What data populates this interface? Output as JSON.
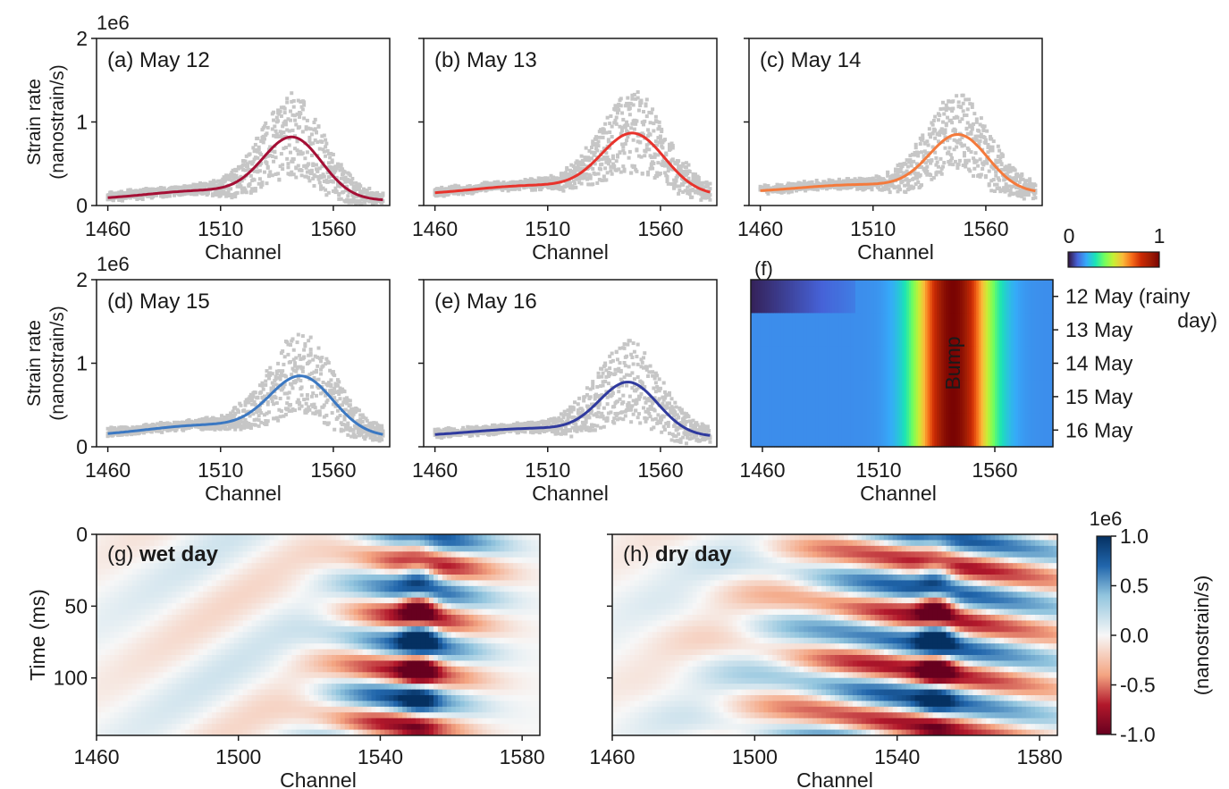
{
  "chart_data": [
    {
      "panel": "(a)",
      "type": "scatter+line",
      "label": "(a)",
      "title": "May 12",
      "exponent": "1e6",
      "xlabel": "Channel",
      "ylabel": [
        "Strain rate",
        "(nanostrain/s)"
      ],
      "xlim": [
        1455,
        1585
      ],
      "ylim": [
        0,
        2
      ],
      "xticks": [
        1460,
        1510,
        1560
      ],
      "yticks": [
        0,
        1,
        2
      ],
      "curve_color": "#a50f35",
      "scatter_color": "#c6c6c6",
      "fit": {
        "baseline": 0.06,
        "peak_channel": 1542,
        "peak": 0.77,
        "width": 13,
        "shoulder": 0.12
      },
      "series": [
        {
          "name": "fit",
          "kind": "line"
        },
        {
          "name": "observed",
          "kind": "scatter"
        }
      ]
    },
    {
      "panel": "(b)",
      "type": "scatter+line",
      "label": "(b)",
      "title": "May 13",
      "exponent": "",
      "xlabel": "Channel",
      "ylabel": [],
      "xlim": [
        1455,
        1585
      ],
      "ylim": [
        0,
        2
      ],
      "xticks": [
        1460,
        1510,
        1560
      ],
      "yticks": [
        0,
        1,
        2
      ],
      "curve_color": "#e8332c",
      "scatter_color": "#c6c6c6",
      "fit": {
        "baseline": 0.12,
        "peak_channel": 1548,
        "peak": 0.83,
        "width": 14,
        "shoulder": 0.12
      }
    },
    {
      "panel": "(c)",
      "type": "scatter+line",
      "label": "(c)",
      "title": "May 14",
      "exponent": "",
      "xlabel": "Channel",
      "ylabel": [],
      "xlim": [
        1455,
        1585
      ],
      "ylim": [
        0,
        2
      ],
      "xticks": [
        1460,
        1510,
        1560
      ],
      "yticks": [
        0,
        1,
        2
      ],
      "curve_color": "#f47a3c",
      "scatter_color": "#c6c6c6",
      "fit": {
        "baseline": 0.15,
        "peak_channel": 1548,
        "peak": 0.82,
        "width": 13,
        "shoulder": 0.1
      }
    },
    {
      "panel": "(d)",
      "type": "scatter+line",
      "label": "(d)",
      "title": "May 15",
      "exponent": "1e6",
      "xlabel": "Channel",
      "ylabel": [
        "Strain rate",
        "(nanostrain/s)"
      ],
      "xlim": [
        1455,
        1585
      ],
      "ylim": [
        0,
        2
      ],
      "xticks": [
        1460,
        1510,
        1560
      ],
      "yticks": [
        0,
        1,
        2
      ],
      "curve_color": "#3b78c2",
      "scatter_color": "#c6c6c6",
      "fit": {
        "baseline": 0.12,
        "peak_channel": 1546,
        "peak": 0.8,
        "width": 14,
        "shoulder": 0.14
      }
    },
    {
      "panel": "(e)",
      "type": "scatter+line",
      "label": "(e)",
      "title": "May 16",
      "exponent": "",
      "xlabel": "Channel",
      "ylabel": [],
      "xlim": [
        1455,
        1585
      ],
      "ylim": [
        0,
        2
      ],
      "xticks": [
        1460,
        1510,
        1560
      ],
      "yticks": [
        0,
        1,
        2
      ],
      "curve_color": "#2f3a9e",
      "scatter_color": "#c6c6c6",
      "fit": {
        "baseline": 0.12,
        "peak_channel": 1546,
        "peak": 0.74,
        "width": 13,
        "shoulder": 0.1
      }
    },
    {
      "panel": "(f)",
      "type": "heatmap",
      "label": "(f)",
      "annotation": "Bump",
      "xlabel": "Channel",
      "xlim": [
        1455,
        1585
      ],
      "xticks": [
        1460,
        1510,
        1560
      ],
      "rows": [
        "12 May (rainy",
        "13 May",
        "14 May",
        "15 May",
        "16 May"
      ],
      "row_highlight": {
        "text": "12 May (rainy",
        "continuation": "day)",
        "color": "#e0202a"
      },
      "colorbar": {
        "min": 0,
        "max": 1,
        "ticks": [
          "0",
          "1"
        ],
        "colormap": "turbo"
      },
      "bump_center": 1542,
      "bump_width": 11
    },
    {
      "panel": "(g)",
      "type": "heatmap",
      "label": "(g)",
      "title": "wet day",
      "xlabel": "Channel",
      "ylabel": "Time (ms)",
      "xlim": [
        1460,
        1585
      ],
      "ylim": [
        0,
        140
      ],
      "xticks": [
        1460,
        1500,
        1540,
        1580
      ],
      "yticks": [
        0,
        50,
        100
      ],
      "colormap": "RdBu",
      "vlim": [
        -1,
        1
      ]
    },
    {
      "panel": "(h)",
      "type": "heatmap",
      "label": "(h)",
      "title": "dry day",
      "xlabel": "Channel",
      "ylabel": "",
      "xlim": [
        1460,
        1585
      ],
      "ylim": [
        0,
        140
      ],
      "xticks": [
        1460,
        1500,
        1540,
        1580
      ],
      "yticks": [
        0,
        50,
        100
      ],
      "colormap": "RdBu",
      "vlim": [
        -1,
        1
      ]
    }
  ],
  "colorbar_gh": {
    "exponent": "1e6",
    "label": "(nanostrain/s)",
    "ticks": [
      "1.0",
      "0.5",
      "0.0",
      "-0.5",
      "-1.0"
    ],
    "values": [
      1,
      0.5,
      0,
      -0.5,
      -1
    ]
  },
  "colors": {
    "axis": "#1a1a1a",
    "positive": "#08519c",
    "negative": "#a50f15"
  }
}
